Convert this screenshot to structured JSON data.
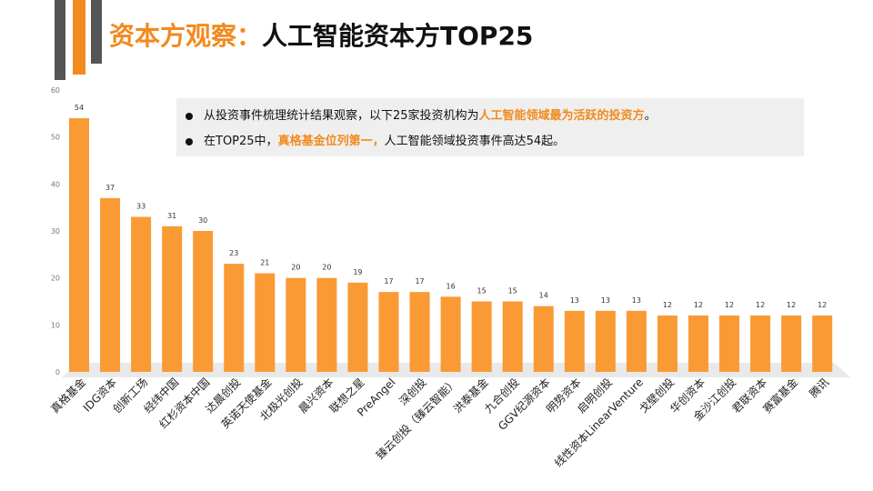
{
  "title": {
    "prefix": "资本方观察：",
    "main": "人工智能资本方TOP25"
  },
  "notes": [
    {
      "pre": "从投资事件梳理统计结果观察，以下25家投资机构为",
      "highlight": "人工智能领域最为活跃的投资方",
      "post": "。"
    },
    {
      "pre": "在TOP25中，",
      "highlight": "真格基金位列第一，",
      "post": "人工智能领域投资事件高达54起。"
    }
  ],
  "colors": {
    "accent": "#F28A1E",
    "bar": "#F99A35",
    "dark": "#555555"
  },
  "chart_data": {
    "type": "bar",
    "title": "",
    "xlabel": "",
    "ylabel": "",
    "ylim": [
      0,
      60
    ],
    "yticks": [
      0,
      10,
      20,
      30,
      40,
      50,
      60
    ],
    "grid": false,
    "legend": "none",
    "categories": [
      "真格基金",
      "IDG资本",
      "创新工场",
      "经纬中国",
      "红杉资本中国",
      "达晨创投",
      "英诺天使基金",
      "北极光创投",
      "晨兴资本",
      "联想之星",
      "PreAngel",
      "深创投",
      "臻云创投（臻云智能）",
      "洪泰基金",
      "九合创投",
      "GGV纪源资本",
      "明势资本",
      "启明创投",
      "线性资本LinearVenture",
      "戈壁创投",
      "华创资本",
      "金沙江创投",
      "君联资本",
      "赛富基金",
      "腾讯"
    ],
    "values": [
      54,
      37,
      33,
      31,
      30,
      23,
      21,
      20,
      20,
      19,
      17,
      17,
      16,
      15,
      15,
      14,
      13,
      13,
      13,
      12,
      12,
      12,
      12,
      12,
      12
    ]
  }
}
